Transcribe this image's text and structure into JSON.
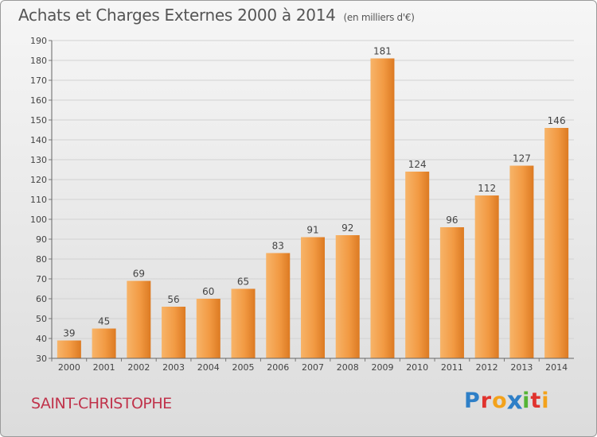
{
  "header": {
    "title": "Achats et Charges Externes 2000 à 2014",
    "subtitle": "(en milliers d'€)"
  },
  "footer": {
    "commune": "SAINT-CHRISTOPHE",
    "logo_letters": [
      {
        "ch": "P",
        "color": "#2e7fc7"
      },
      {
        "ch": "r",
        "color": "#e0332e"
      },
      {
        "ch": "o",
        "color": "#f3a21b"
      },
      {
        "ch": "x",
        "color": "#2e7fc7"
      },
      {
        "ch": "i",
        "color": "#54b435"
      },
      {
        "ch": "t",
        "color": "#e0332e"
      },
      {
        "ch": "i",
        "color": "#f3a21b"
      }
    ]
  },
  "chart_data": {
    "type": "bar",
    "categories": [
      "2000",
      "2001",
      "2002",
      "2003",
      "2004",
      "2005",
      "2006",
      "2007",
      "2008",
      "2009",
      "2010",
      "2011",
      "2012",
      "2013",
      "2014"
    ],
    "values": [
      39,
      45,
      69,
      56,
      60,
      65,
      83,
      91,
      92,
      181,
      124,
      96,
      112,
      127,
      146
    ],
    "title": "Achats et Charges Externes 2000 à 2014",
    "ylim": [
      30,
      190
    ],
    "yticks": [
      30,
      40,
      50,
      60,
      70,
      80,
      90,
      100,
      110,
      120,
      130,
      140,
      150,
      160,
      170,
      180,
      190
    ],
    "grid": true,
    "data_labels": true,
    "colors": {
      "bar_light": "#f5a650",
      "bar_dark": "#d9741c",
      "grid": "#d2d2d2",
      "text": "#444444"
    }
  }
}
